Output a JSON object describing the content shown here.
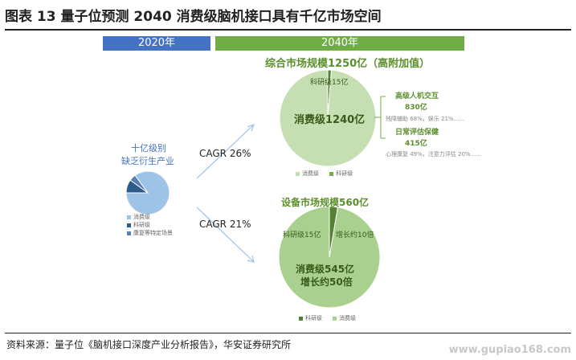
{
  "figure": {
    "title": "图表 13 量子位预测 2040 消费级脑机接口具有千亿市场空间",
    "header_2020": "2020年",
    "header_2040": "2040年",
    "source": "资料来源：量子位《脑机接口深度产业分析报告》，华安证券研究所",
    "watermark": "www.gupiao168.com"
  },
  "left": {
    "line1": "十亿级别",
    "line2": "缺乏衍生产业",
    "legend": [
      "消费级",
      "科研级",
      "康复等特定场景"
    ]
  },
  "arrows": {
    "top": "CAGR 26%",
    "bottom": "CAGR 21%"
  },
  "top_pie": {
    "title": "综合市场规模1250亿（高附加值）",
    "research_label": "科研级15亿",
    "consumer_label": "消费级1240亿",
    "legend": [
      "消费级",
      "科研级"
    ],
    "annotations": {
      "a_title": "高级人机交互",
      "a_value": "830亿",
      "a_detail": "残障辅助 68%，娱乐 21%......",
      "b_title": "日常评估保健",
      "b_value": "415亿",
      "b_detail": "心理康复 49%，注意力评估 20%......"
    }
  },
  "bottom_pie": {
    "title": "设备市场规模560亿",
    "research_label": "科研级15亿",
    "growth_small": "增长约10倍",
    "consumer_label": "消费级545亿",
    "growth_big": "增长约50倍",
    "legend": [
      "科研级",
      "消费级"
    ]
  },
  "colors": {
    "blue_header": "#4472c4",
    "green_header": "#70ad47",
    "pie_light_green": "#c5deb2",
    "pie_mid_green": "#a9d08e",
    "pie_dark_green": "#548235",
    "pie_light_blue": "#9dc3e6",
    "pie_dark_blue": "#2e5c8a"
  },
  "chart_data": [
    {
      "type": "pie",
      "title": "",
      "slices": [
        {
          "name": "消费级",
          "value": 0.85
        },
        {
          "name": "科研级",
          "value": 0.1
        },
        {
          "name": "康复等特定场景",
          "value": 0.05
        }
      ]
    },
    {
      "type": "pie",
      "title": "综合市场规模1250亿（高附加值）",
      "slices": [
        {
          "name": "科研级",
          "value": 15
        },
        {
          "name": "消费级",
          "value": 1240
        }
      ]
    },
    {
      "type": "pie",
      "title": "设备市场规模560亿",
      "slices": [
        {
          "name": "科研级",
          "value": 15
        },
        {
          "name": "消费级",
          "value": 545
        }
      ]
    }
  ]
}
